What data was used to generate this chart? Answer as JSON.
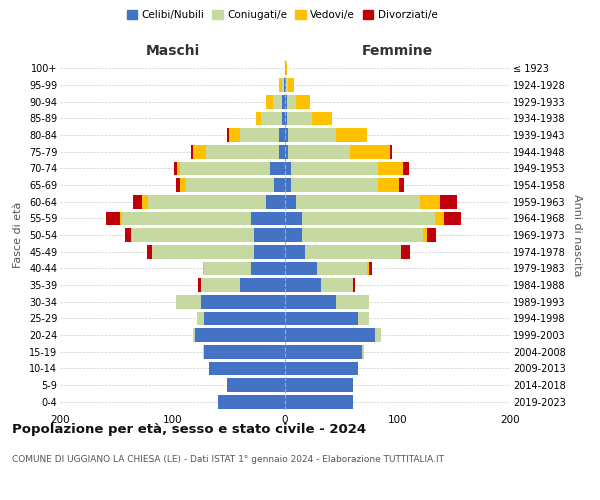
{
  "age_groups": [
    "0-4",
    "5-9",
    "10-14",
    "15-19",
    "20-24",
    "25-29",
    "30-34",
    "35-39",
    "40-44",
    "45-49",
    "50-54",
    "55-59",
    "60-64",
    "65-69",
    "70-74",
    "75-79",
    "80-84",
    "85-89",
    "90-94",
    "95-99",
    "100+"
  ],
  "birth_years": [
    "2019-2023",
    "2014-2018",
    "2009-2013",
    "2004-2008",
    "1999-2003",
    "1994-1998",
    "1989-1993",
    "1984-1988",
    "1979-1983",
    "1974-1978",
    "1969-1973",
    "1964-1968",
    "1959-1963",
    "1954-1958",
    "1949-1953",
    "1944-1948",
    "1939-1943",
    "1934-1938",
    "1929-1933",
    "1924-1928",
    "≤ 1923"
  ],
  "maschi": {
    "celibi": [
      60,
      52,
      68,
      72,
      80,
      72,
      75,
      40,
      30,
      28,
      28,
      30,
      17,
      10,
      13,
      5,
      5,
      3,
      3,
      1,
      0
    ],
    "coniugati": [
      0,
      0,
      0,
      1,
      2,
      6,
      22,
      35,
      42,
      90,
      108,
      115,
      105,
      78,
      80,
      65,
      35,
      18,
      8,
      2,
      0
    ],
    "vedovi": [
      0,
      0,
      0,
      0,
      0,
      0,
      0,
      0,
      1,
      0,
      1,
      2,
      5,
      5,
      3,
      12,
      10,
      5,
      6,
      2,
      0
    ],
    "divorziati": [
      0,
      0,
      0,
      0,
      0,
      0,
      0,
      2,
      0,
      5,
      5,
      12,
      8,
      4,
      3,
      2,
      2,
      0,
      0,
      0,
      0
    ]
  },
  "femmine": {
    "nubili": [
      60,
      60,
      65,
      68,
      80,
      65,
      45,
      32,
      28,
      18,
      15,
      15,
      10,
      5,
      5,
      3,
      3,
      2,
      2,
      1,
      0
    ],
    "coniugate": [
      0,
      0,
      0,
      2,
      5,
      10,
      30,
      28,
      45,
      85,
      108,
      118,
      110,
      78,
      78,
      55,
      42,
      22,
      8,
      2,
      0
    ],
    "vedove": [
      0,
      0,
      0,
      0,
      0,
      0,
      0,
      0,
      2,
      0,
      3,
      8,
      18,
      18,
      22,
      35,
      28,
      18,
      12,
      5,
      2
    ],
    "divorziate": [
      0,
      0,
      0,
      0,
      0,
      0,
      0,
      2,
      2,
      8,
      8,
      15,
      15,
      5,
      5,
      2,
      0,
      0,
      0,
      0,
      0
    ]
  },
  "colors": {
    "celibi": "#4472c4",
    "coniugati": "#c5d9a0",
    "vedovi": "#ffc000",
    "divorziati": "#c0000a"
  },
  "title": "Popolazione per età, sesso e stato civile - 2024",
  "subtitle": "COMUNE DI UGGIANO LA CHIESA (LE) - Dati ISTAT 1° gennaio 2024 - Elaborazione TUTTITALIA.IT",
  "xlabel_left": "Maschi",
  "xlabel_right": "Femmine",
  "ylabel_left": "Fasce di età",
  "ylabel_right": "Anni di nascita",
  "xlim": 200,
  "grid_color": "#cccccc"
}
